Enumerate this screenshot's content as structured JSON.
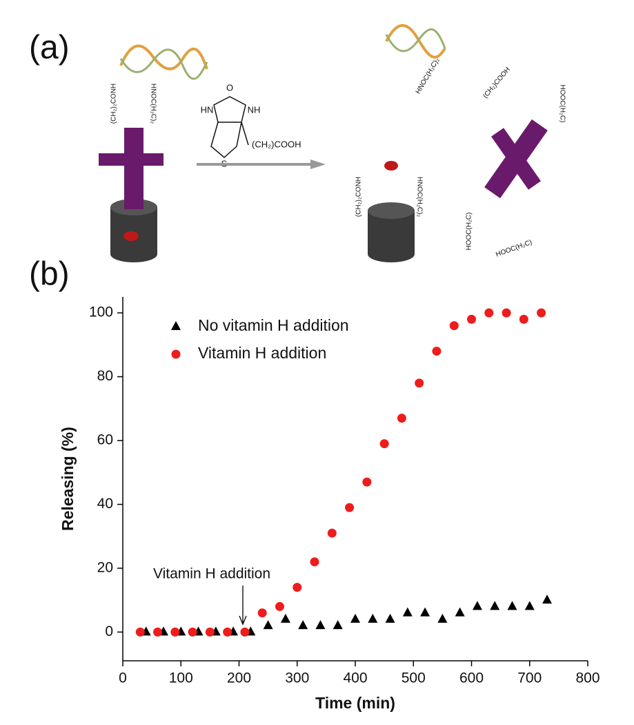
{
  "panels": {
    "a": "(a)",
    "b": "(b)"
  },
  "diagram": {
    "reagent": "(CH₂)COOH",
    "hn": "HN",
    "nh": "NH",
    "o": "O",
    "s": "S",
    "linker_left": "(CH₂)₂CONH",
    "linker_right": "HNOC(H₂C)₂",
    "free_acid": "(CH₂)COOH",
    "free_acid_2": "HOOC(H₂C)"
  },
  "chart_data": {
    "type": "scatter",
    "x_label": "Time (min)",
    "y_label": "Releasing (%)",
    "annotation": "Vitamin H addition",
    "xlim": [
      0,
      800
    ],
    "ylim": [
      -9,
      105
    ],
    "xticks": [
      0,
      100,
      200,
      300,
      400,
      500,
      600,
      700,
      800
    ],
    "yticks": [
      0,
      20,
      40,
      60,
      80,
      100
    ],
    "legend": "upper left",
    "series": [
      {
        "name": "No vitamin H addition",
        "color": "#000000",
        "marker": "triangle",
        "x": [
          40,
          70,
          100,
          130,
          160,
          190,
          220,
          250,
          280,
          310,
          340,
          370,
          400,
          430,
          460,
          490,
          520,
          550,
          580,
          610,
          640,
          670,
          700,
          730
        ],
        "values": [
          0,
          0,
          0,
          0,
          0,
          0,
          0,
          2,
          4,
          2,
          2,
          2,
          4,
          4,
          4,
          6,
          6,
          4,
          6,
          8,
          8,
          8,
          8,
          10
        ]
      },
      {
        "name": "Vitamin H addition",
        "color": "#ee1c1c",
        "marker": "circle",
        "x": [
          30,
          60,
          90,
          120,
          150,
          180,
          210,
          240,
          270,
          300,
          330,
          360,
          390,
          420,
          450,
          480,
          510,
          540,
          570,
          600,
          630,
          660,
          690,
          720
        ],
        "values": [
          0,
          0,
          0,
          0,
          0,
          0,
          0,
          6,
          8,
          14,
          22,
          31,
          39,
          47,
          59,
          67,
          78,
          88,
          96,
          98,
          100,
          100,
          98,
          100
        ]
      }
    ]
  }
}
